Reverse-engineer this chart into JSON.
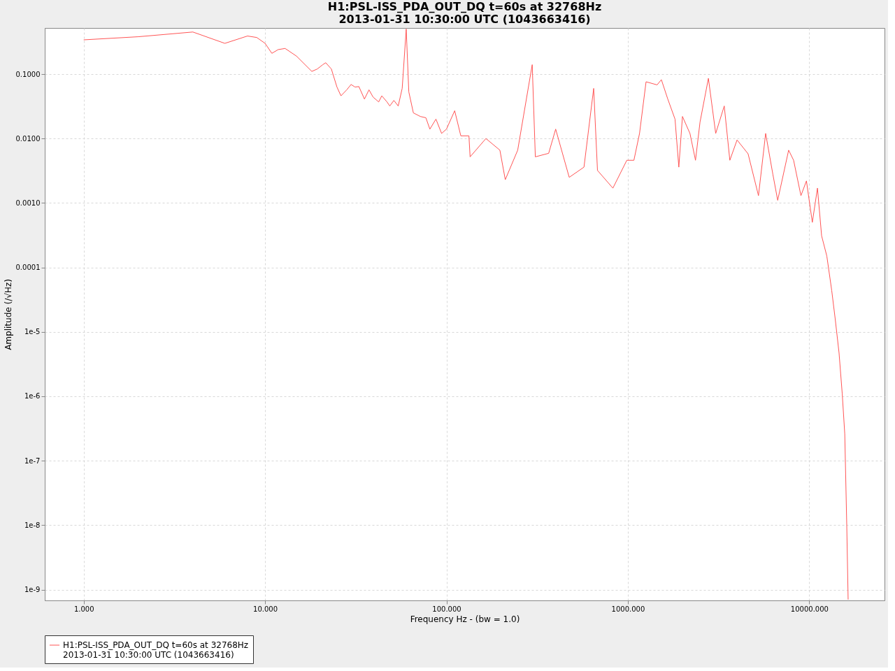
{
  "chart_data": {
    "type": "line",
    "title": "H1:PSL-ISS_PDA_OUT_DQ t=60s at 32768Hz\n2013-01-31 10:30:00 UTC (1043663416)",
    "xlabel": "Frequency Hz - (bw = 1.0)",
    "ylabel": "Amplitude  (/√Hz)",
    "log": "xy",
    "grid": true,
    "legend": "bottom",
    "line_style": "solid",
    "xlim": [
      0.61,
      26000
    ],
    "ylim": [
      6.8e-10,
      0.52
    ],
    "xticks": [
      {
        "value": 1,
        "label": "1.000"
      },
      {
        "value": 10,
        "label": "10.000"
      },
      {
        "value": 100,
        "label": "100.000"
      },
      {
        "value": 1000,
        "label": "1000.000"
      },
      {
        "value": 10000,
        "label": "10000.000"
      }
    ],
    "yticks": [
      {
        "value": 0.1,
        "label": "0.1000"
      },
      {
        "value": 0.01,
        "label": "0.0100"
      },
      {
        "value": 0.001,
        "label": "0.0010"
      },
      {
        "value": 0.0001,
        "label": "0.0001"
      },
      {
        "value": 1e-05,
        "label": "1e-5"
      },
      {
        "value": 1e-06,
        "label": "1e-6"
      },
      {
        "value": 1e-07,
        "label": "1e-7"
      },
      {
        "value": 1e-08,
        "label": "1e-8"
      },
      {
        "value": 1e-09,
        "label": "1e-9"
      }
    ],
    "series": [
      {
        "name": "H1:PSL-ISS_PDA_OUT_DQ t=60s at 32768Hz\n2013-01-31 10:30:00 UTC (1043663416)",
        "color": "#ff5555",
        "x": [
          1,
          2,
          4,
          6,
          8,
          9,
          10,
          10.9,
          11.8,
          12.9,
          14.9,
          18.1,
          19.4,
          20.8,
          21.6,
          23.2,
          24.9,
          26.2,
          28.2,
          29.8,
          31.3,
          32.9,
          35.3,
          37.4,
          39.4,
          42.3,
          44,
          47,
          48.7,
          51.3,
          54.2,
          57,
          60,
          62,
          65.7,
          71.8,
          77,
          81,
          87.5,
          94,
          100,
          111,
          120,
          133,
          135,
          165,
          197,
          211,
          247,
          297,
          309,
          366,
          400,
          475,
          573,
          648,
          680,
          827,
          987,
          1080,
          1160,
          1260,
          1450,
          1530,
          1660,
          1820,
          1910,
          2000,
          2200,
          2360,
          2500,
          2780,
          3050,
          3400,
          3650,
          4000,
          4600,
          5250,
          5750,
          6300,
          6700,
          7700,
          8200,
          9000,
          9650,
          10400,
          11100,
          11700,
          12500,
          13300,
          13900,
          14600,
          15200,
          15700,
          16100,
          16384
        ],
        "values": [
          0.34,
          0.38,
          0.45,
          0.3,
          0.39,
          0.37,
          0.3,
          0.21,
          0.24,
          0.25,
          0.19,
          0.11,
          0.12,
          0.14,
          0.15,
          0.12,
          0.063,
          0.046,
          0.057,
          0.069,
          0.063,
          0.064,
          0.041,
          0.057,
          0.044,
          0.037,
          0.046,
          0.037,
          0.032,
          0.039,
          0.032,
          0.06,
          0.5,
          0.053,
          0.025,
          0.022,
          0.021,
          0.014,
          0.02,
          0.012,
          0.014,
          0.027,
          0.011,
          0.011,
          0.0052,
          0.01,
          0.0066,
          0.0023,
          0.0066,
          0.14,
          0.0052,
          0.0059,
          0.014,
          0.0025,
          0.0036,
          0.06,
          0.0032,
          0.0017,
          0.0046,
          0.0046,
          0.012,
          0.076,
          0.068,
          0.082,
          0.041,
          0.02,
          0.0036,
          0.022,
          0.012,
          0.0046,
          0.018,
          0.086,
          0.012,
          0.032,
          0.0046,
          0.0095,
          0.0058,
          0.0013,
          0.012,
          0.0028,
          0.0011,
          0.0066,
          0.0046,
          0.0013,
          0.0022,
          0.0005,
          0.0017,
          0.00031,
          0.00015,
          4.4e-05,
          1.6e-05,
          4.7e-06,
          1.1e-06,
          2.6e-07,
          1e-08,
          7e-10
        ]
      }
    ]
  }
}
